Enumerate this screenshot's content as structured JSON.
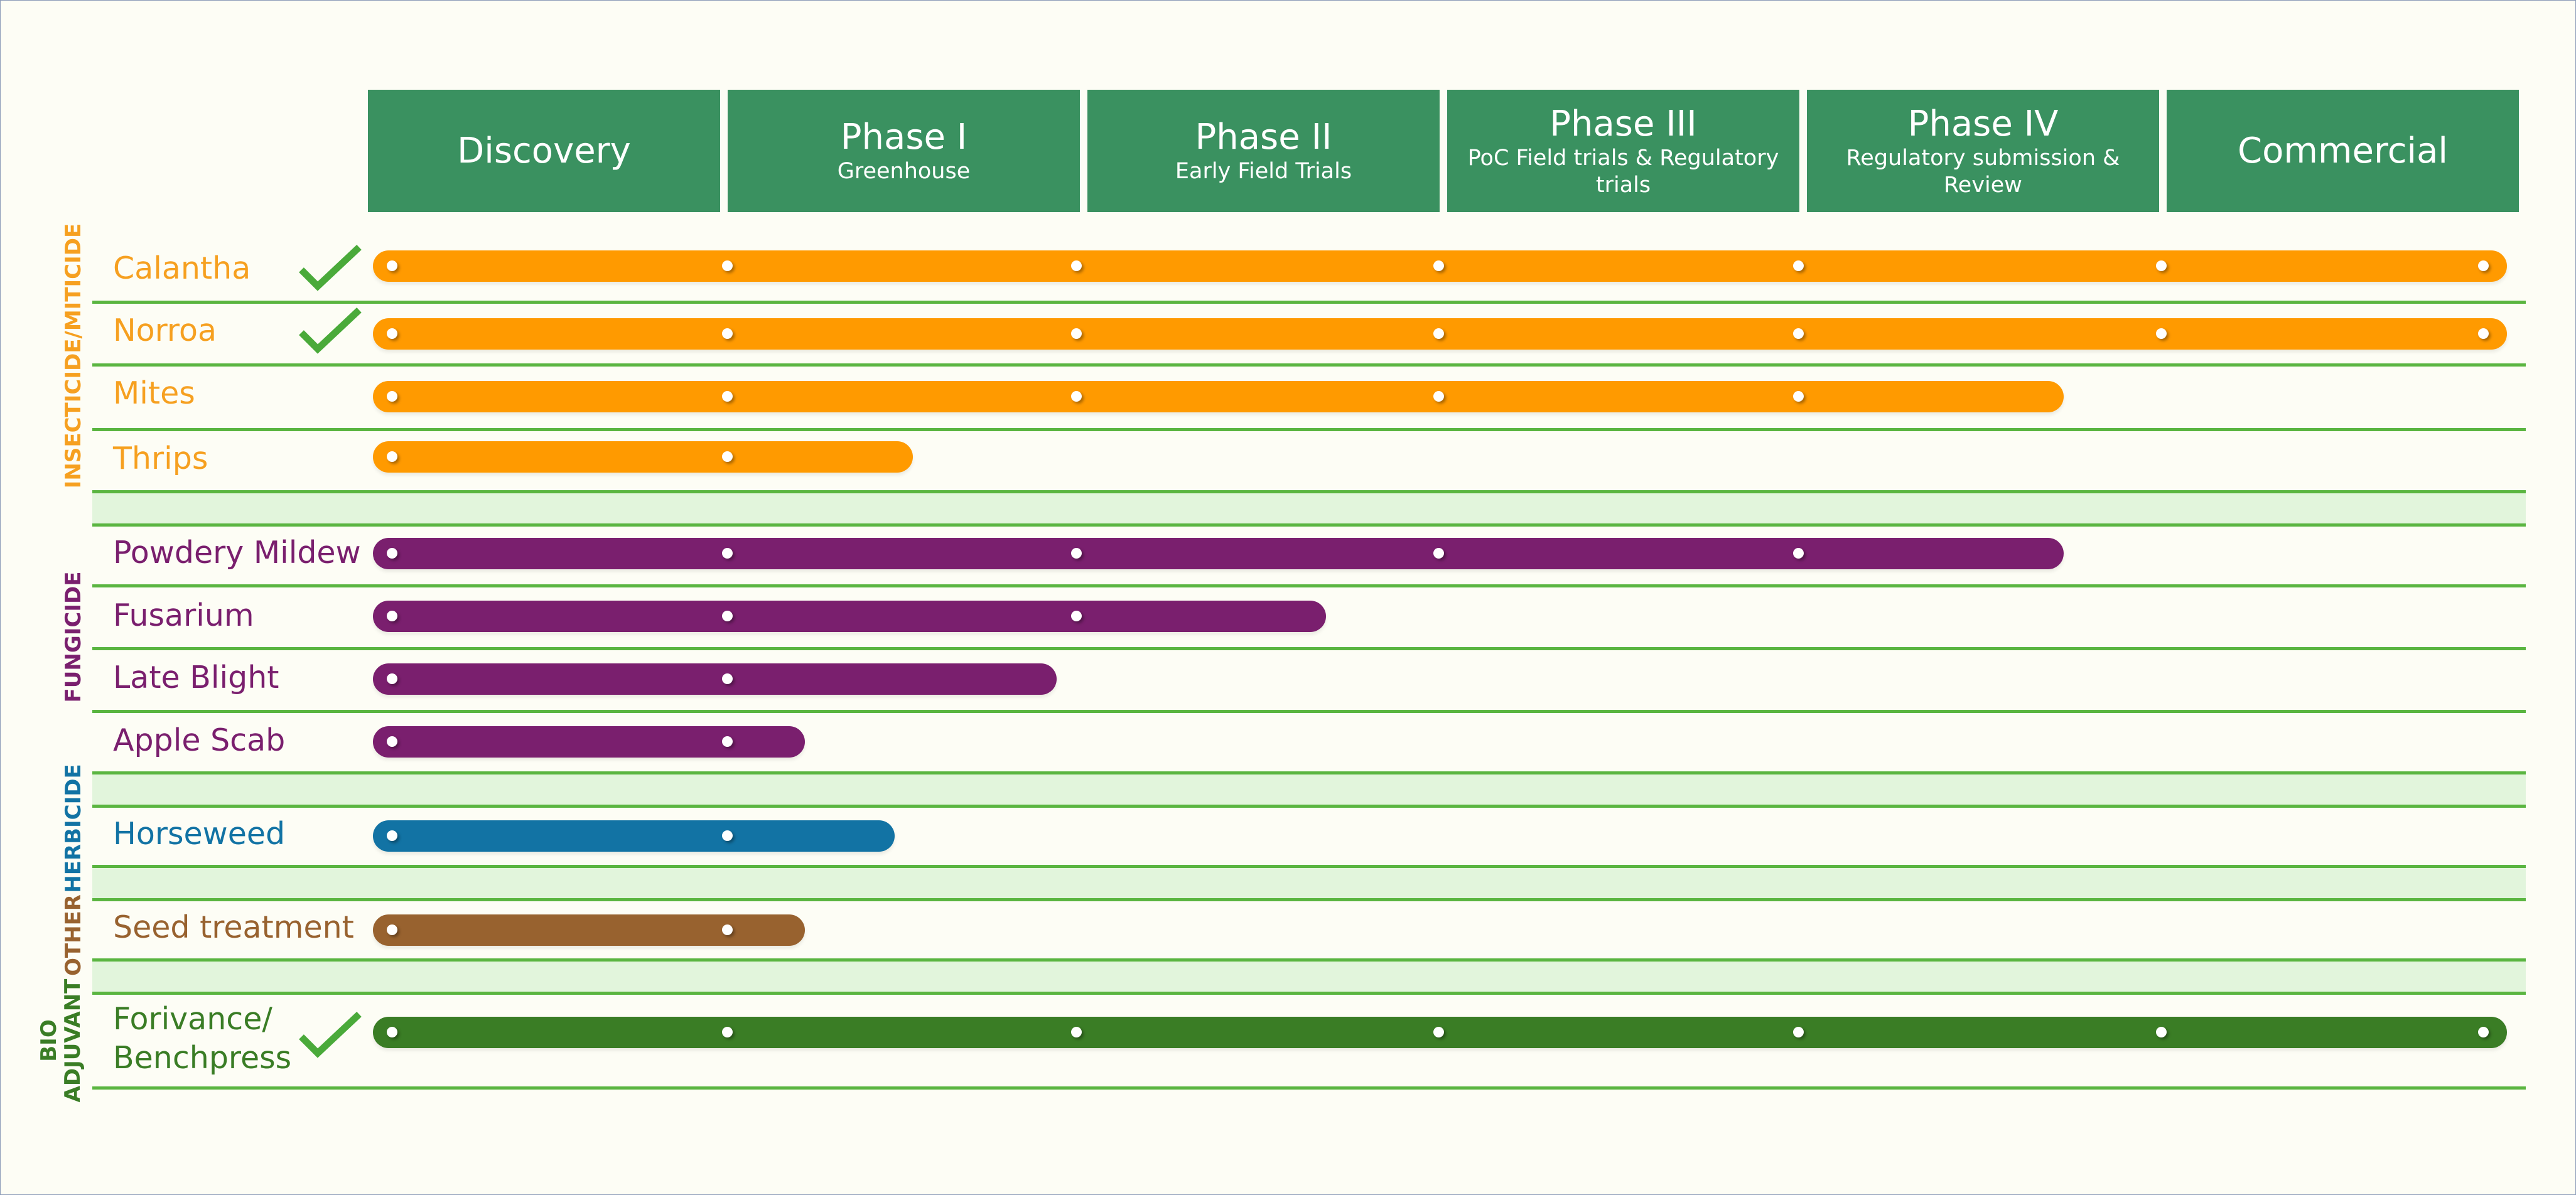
{
  "phases": [
    {
      "title": "Discovery",
      "sub": ""
    },
    {
      "title": "Phase I",
      "sub": "Greenhouse"
    },
    {
      "title": "Phase II",
      "sub": "Early Field Trials"
    },
    {
      "title": "Phase III",
      "sub": "PoC Field trials & Regulatory trials"
    },
    {
      "title": "Phase IV",
      "sub": "Regulatory submission & Review"
    },
    {
      "title": "Commercial",
      "sub": ""
    }
  ],
  "categories": [
    {
      "key": "insecticide",
      "label": "INSECTICIDE/MITICIDE",
      "color": "#f6a020"
    },
    {
      "key": "fungicide",
      "label": "FUNGICIDE",
      "color": "#7a1f6e"
    },
    {
      "key": "herbicide",
      "label": "HERBICIDE",
      "color": "#1273a4"
    },
    {
      "key": "other",
      "label": "OTHER",
      "color": "#98622f"
    },
    {
      "key": "bio",
      "label": "BIO ADJUVANT",
      "color": "#3a7d25"
    }
  ],
  "bar_colors": {
    "insecticide": "#ff9a00",
    "fungicide": "#7a1f6e",
    "herbicide": "#1273a4",
    "other": "#98622f",
    "bio": "#3a7d25"
  },
  "check_color": "#4aaa3a",
  "rows": [
    {
      "label": "Calantha",
      "category": "insecticide",
      "stage": 6.0,
      "checked": true
    },
    {
      "label": "Norroa",
      "category": "insecticide",
      "stage": 6.0,
      "checked": true
    },
    {
      "label": "Mites",
      "category": "insecticide",
      "stage": 4.7,
      "checked": false
    },
    {
      "label": "Thrips",
      "category": "insecticide",
      "stage": 1.5,
      "checked": false
    },
    {
      "label": "Powdery Mildew",
      "category": "fungicide",
      "stage": 4.7,
      "checked": false
    },
    {
      "label": "Fusarium",
      "category": "fungicide",
      "stage": 2.65,
      "checked": false
    },
    {
      "label": "Late Blight",
      "category": "fungicide",
      "stage": 1.9,
      "checked": false
    },
    {
      "label": "Apple Scab",
      "category": "fungicide",
      "stage": 1.2,
      "checked": false
    },
    {
      "label": "Horseweed",
      "category": "herbicide",
      "stage": 1.45,
      "checked": false
    },
    {
      "label": "Seed treatment",
      "category": "other",
      "stage": 1.2,
      "checked": false
    },
    {
      "label": "Forivance/ Benchpress",
      "category": "bio",
      "stage": 6.0,
      "checked": true
    }
  ]
}
